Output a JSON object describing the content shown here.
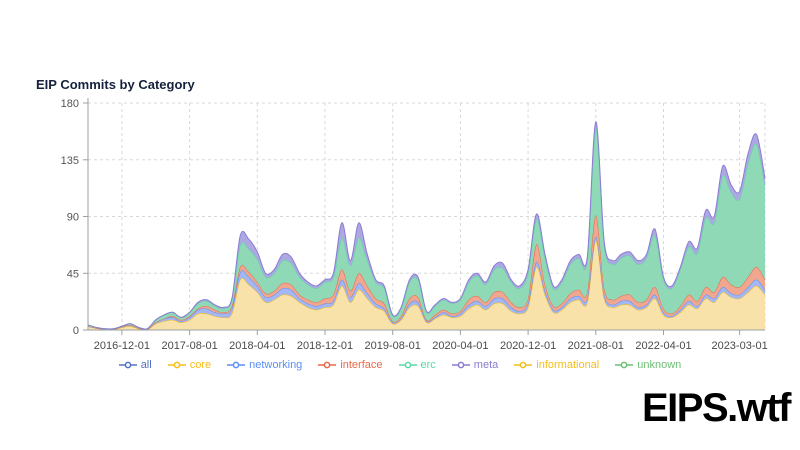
{
  "page": {
    "background": "#ffffff"
  },
  "header": {
    "title": "EIP Commits by Category",
    "title_color": "#16213e"
  },
  "branding": {
    "logo_text": "EIPS.wtf",
    "logo_color": "#000000"
  },
  "chart_data": {
    "type": "area",
    "stacked": true,
    "title": "EIP Commits by Category",
    "xlabel": "",
    "ylabel": "",
    "ylim": [
      0,
      180
    ],
    "y_ticks": [
      0,
      45,
      90,
      135,
      180
    ],
    "grid": "dashed",
    "legend_position": "bottom",
    "x_start": "2016-08",
    "x_end": "2023-04",
    "n_points": 81,
    "x_tick_labels": [
      "2016-12-01",
      "2017-08-01",
      "2018-04-01",
      "2018-12-01",
      "2019-08-01",
      "2020-04-01",
      "2020-12-01",
      "2021-08-01",
      "2022-04-01",
      "2023-03-01"
    ],
    "x_tick_indices": [
      4,
      12,
      20,
      28,
      36,
      44,
      52,
      60,
      68,
      77
    ],
    "note": "Monthly EIP commit counts, stacked by category; values estimated from pixels. 'all' series equals the sum of the stacked categories; 'informational' and 'unknown' are ~0 throughout.",
    "legend": [
      {
        "name": "all",
        "color": "#5470C6"
      },
      {
        "name": "core",
        "color": "#F6BD16"
      },
      {
        "name": "networking",
        "color": "#5B8FF9"
      },
      {
        "name": "interface",
        "color": "#E8684A"
      },
      {
        "name": "erc",
        "color": "#5AD8A6"
      },
      {
        "name": "meta",
        "color": "#8C7BD3"
      },
      {
        "name": "informational",
        "color": "#F6BD16"
      },
      {
        "name": "unknown",
        "color": "#6FBF73"
      }
    ],
    "series": [
      {
        "name": "core",
        "color": "#F6BD16",
        "fill": "#F8E2A9",
        "values": [
          3,
          1.5,
          0.5,
          0.5,
          2,
          3,
          1,
          0.5,
          5,
          7,
          8,
          6,
          8,
          13,
          13,
          11,
          10,
          13,
          40,
          36,
          30,
          22,
          24,
          28,
          27,
          22,
          18,
          16,
          18,
          20,
          35,
          22,
          32,
          25,
          18,
          15,
          5,
          8,
          18,
          19,
          6,
          9,
          12,
          10,
          11,
          17,
          20,
          16,
          21,
          21,
          15,
          13,
          18,
          50,
          28,
          14,
          16,
          22,
          24,
          22,
          71,
          25,
          18,
          20,
          20,
          16,
          18,
          25,
          12,
          10,
          14,
          20,
          17,
          25,
          22,
          30,
          26,
          25,
          30,
          35,
          28
        ]
      },
      {
        "name": "networking",
        "color": "#5B8FF9",
        "fill": "#A3B7F2",
        "values": [
          0,
          0,
          0,
          0,
          0.5,
          1,
          0.5,
          0,
          1,
          2,
          2,
          1,
          2,
          3,
          4,
          3,
          3,
          4,
          6,
          6,
          5,
          4,
          4,
          5,
          5,
          3,
          3,
          3,
          3,
          3,
          5,
          4,
          5,
          4,
          3,
          2,
          1,
          1,
          3,
          3,
          1,
          1,
          2,
          1,
          2,
          3,
          3,
          3,
          4,
          4,
          3,
          2,
          3,
          4,
          3,
          2,
          2,
          3,
          3,
          3,
          3,
          3,
          2,
          3,
          3,
          2,
          2,
          3,
          2,
          1,
          2,
          3,
          2,
          3,
          3,
          4,
          3,
          3,
          4,
          5,
          4
        ]
      },
      {
        "name": "interface",
        "color": "#E8684A",
        "fill": "#F1A78F",
        "values": [
          0,
          0,
          0,
          0,
          0,
          0,
          0,
          0,
          0,
          0,
          1,
          1,
          1,
          1,
          2,
          2,
          1,
          2,
          4,
          4,
          3,
          3,
          3,
          4,
          4,
          3,
          3,
          3,
          4,
          5,
          8,
          5,
          8,
          6,
          4,
          4,
          1,
          2,
          4,
          4,
          1,
          2,
          2,
          2,
          2,
          4,
          4,
          3,
          5,
          5,
          4,
          3,
          4,
          14,
          5,
          3,
          3,
          4,
          5,
          5,
          17,
          5,
          4,
          4,
          5,
          4,
          4,
          6,
          3,
          2,
          3,
          5,
          4,
          6,
          5,
          8,
          7,
          6,
          8,
          10,
          8
        ]
      },
      {
        "name": "erc",
        "color": "#5AD8A6",
        "fill": "#8FD9B6",
        "values": [
          1,
          0.5,
          0.5,
          0.5,
          0.5,
          1,
          0.5,
          0.5,
          2,
          3,
          3,
          2,
          3,
          4,
          4,
          3,
          3,
          5,
          17,
          18,
          18,
          13,
          14,
          18,
          17,
          14,
          12,
          11,
          13,
          14,
          25,
          20,
          28,
          20,
          13,
          12,
          4,
          6,
          13,
          14,
          6,
          7,
          8,
          8,
          9,
          14,
          16,
          14,
          18,
          19,
          16,
          15,
          20,
          20,
          21,
          14,
          17,
          23,
          25,
          25,
          69,
          34,
          28,
          30,
          31,
          30,
          33,
          41,
          23,
          20,
          29,
          38,
          38,
          55,
          55,
          80,
          73,
          70,
          90,
          97,
          75
        ]
      },
      {
        "name": "meta",
        "color": "#8C7BD3",
        "fill": "#ABA8E2",
        "values": [
          0,
          0,
          0,
          0,
          0,
          0,
          0,
          0,
          0,
          0,
          0,
          0,
          0,
          1,
          1,
          1,
          1,
          1,
          8,
          8,
          6,
          3,
          3,
          5,
          5,
          3,
          2,
          2,
          2,
          3,
          12,
          4,
          12,
          5,
          2,
          2,
          1,
          1,
          2,
          2,
          1,
          1,
          1,
          1,
          1,
          2,
          2,
          2,
          3,
          4,
          2,
          2,
          3,
          4,
          3,
          2,
          2,
          3,
          3,
          3,
          5,
          3,
          3,
          3,
          3,
          3,
          3,
          5,
          2,
          2,
          2,
          4,
          4,
          6,
          5,
          8,
          6,
          6,
          8,
          8,
          5
        ]
      },
      {
        "name": "informational",
        "color": "#F6BD16",
        "fill": "#F8E2A9",
        "values": [
          0,
          0,
          0,
          0,
          0,
          0,
          0,
          0,
          0,
          0,
          0,
          0,
          0,
          0,
          0,
          0,
          0,
          0,
          0,
          0,
          0,
          0,
          0,
          0,
          0,
          0,
          0,
          0,
          0,
          0,
          0,
          0,
          0,
          0,
          0,
          0,
          0,
          0,
          0,
          0,
          0,
          0,
          0,
          0,
          0,
          0,
          0,
          0,
          0,
          0,
          0,
          0,
          0,
          0,
          0,
          0,
          0,
          0,
          0,
          0,
          0,
          0,
          0,
          0,
          0,
          0,
          0,
          0,
          0,
          0,
          0,
          0,
          0,
          0,
          0,
          0,
          0,
          0,
          0,
          0,
          0
        ]
      },
      {
        "name": "unknown",
        "color": "#6FBF73",
        "fill": "#B8E0BA",
        "values": [
          0,
          0,
          0,
          0,
          0,
          0,
          0,
          0,
          0,
          0,
          0,
          0,
          0,
          0,
          0,
          0,
          0,
          0,
          0,
          0,
          0,
          0,
          0,
          0,
          0,
          0,
          0,
          0,
          0,
          0,
          0,
          0,
          0,
          0,
          0,
          0,
          0,
          0,
          0,
          0,
          0,
          0,
          0,
          0,
          0,
          0,
          0,
          0,
          0,
          0,
          0,
          0,
          0,
          0,
          0,
          0,
          0,
          0,
          0,
          0,
          0,
          0,
          0,
          0,
          0,
          0,
          0,
          0,
          0,
          0,
          0,
          0,
          0,
          0,
          0,
          0,
          0,
          0,
          0,
          0,
          0
        ]
      }
    ]
  }
}
